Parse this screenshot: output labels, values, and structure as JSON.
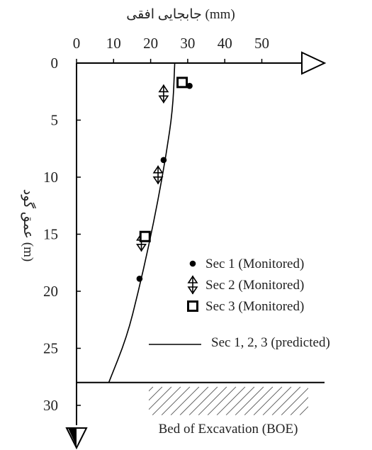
{
  "chart_data": {
    "type": "scatter",
    "title": "",
    "xlabel": "جابجایی افقی (mm)",
    "ylabel": "عمق گود (m)",
    "x_axis_position": "top",
    "y_inverted": true,
    "xlim": [
      0,
      57
    ],
    "ylim": [
      0,
      32
    ],
    "x_ticks": [
      0,
      10,
      20,
      30,
      40,
      50
    ],
    "y_ticks": [
      0,
      5,
      10,
      15,
      20,
      25,
      30
    ],
    "grid": false,
    "legend_position": "right",
    "series": [
      {
        "name": "Sec 1 (Monitored)",
        "marker": "dot",
        "points": [
          {
            "x": 30.5,
            "y": 2.0
          },
          {
            "x": 23.5,
            "y": 8.5
          },
          {
            "x": 17,
            "y": 18.9
          }
        ]
      },
      {
        "name": "Sec 2 (Monitored)",
        "marker": "double-arrow",
        "points": [
          {
            "x": 23.5,
            "y": 2.7
          },
          {
            "x": 22.0,
            "y": 9.8
          },
          {
            "x": 17.5,
            "y": 15.7
          }
        ]
      },
      {
        "name": "Sec 3 (Monitored)",
        "marker": "square",
        "points": [
          {
            "x": 28.5,
            "y": 1.7
          },
          {
            "x": 18.5,
            "y": 15.2
          }
        ]
      },
      {
        "name": "Sec 1, 2, 3 (predicted)",
        "marker": "line",
        "points": [
          {
            "x": 26.5,
            "y": 0
          },
          {
            "x": 26.0,
            "y": 4
          },
          {
            "x": 24.2,
            "y": 8
          },
          {
            "x": 22.0,
            "y": 12
          },
          {
            "x": 19.5,
            "y": 16
          },
          {
            "x": 16.7,
            "y": 20
          },
          {
            "x": 13.6,
            "y": 24
          },
          {
            "x": 8.7,
            "y": 28
          }
        ]
      }
    ],
    "boe": {
      "depth": 28,
      "label": "Bed of Excavation (BOE)"
    }
  }
}
